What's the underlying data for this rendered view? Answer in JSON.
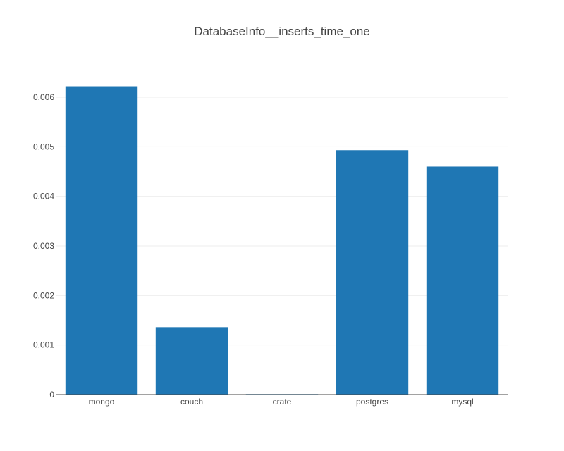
{
  "chart_data": {
    "type": "bar",
    "title": "DatabaseInfo__inserts_time_one",
    "categories": [
      "mongo",
      "couch",
      "crate",
      "postgres",
      "mysql"
    ],
    "values": [
      0.00622,
      0.00136,
      1e-05,
      0.00493,
      0.0046
    ],
    "ylim": [
      0,
      0.006
    ],
    "yticks": [
      "0",
      "0.001",
      "0.002",
      "0.003",
      "0.004",
      "0.005",
      "0.006"
    ],
    "xlabel": "",
    "ylabel": "",
    "grid": true,
    "bar_color": "#1f77b4"
  }
}
